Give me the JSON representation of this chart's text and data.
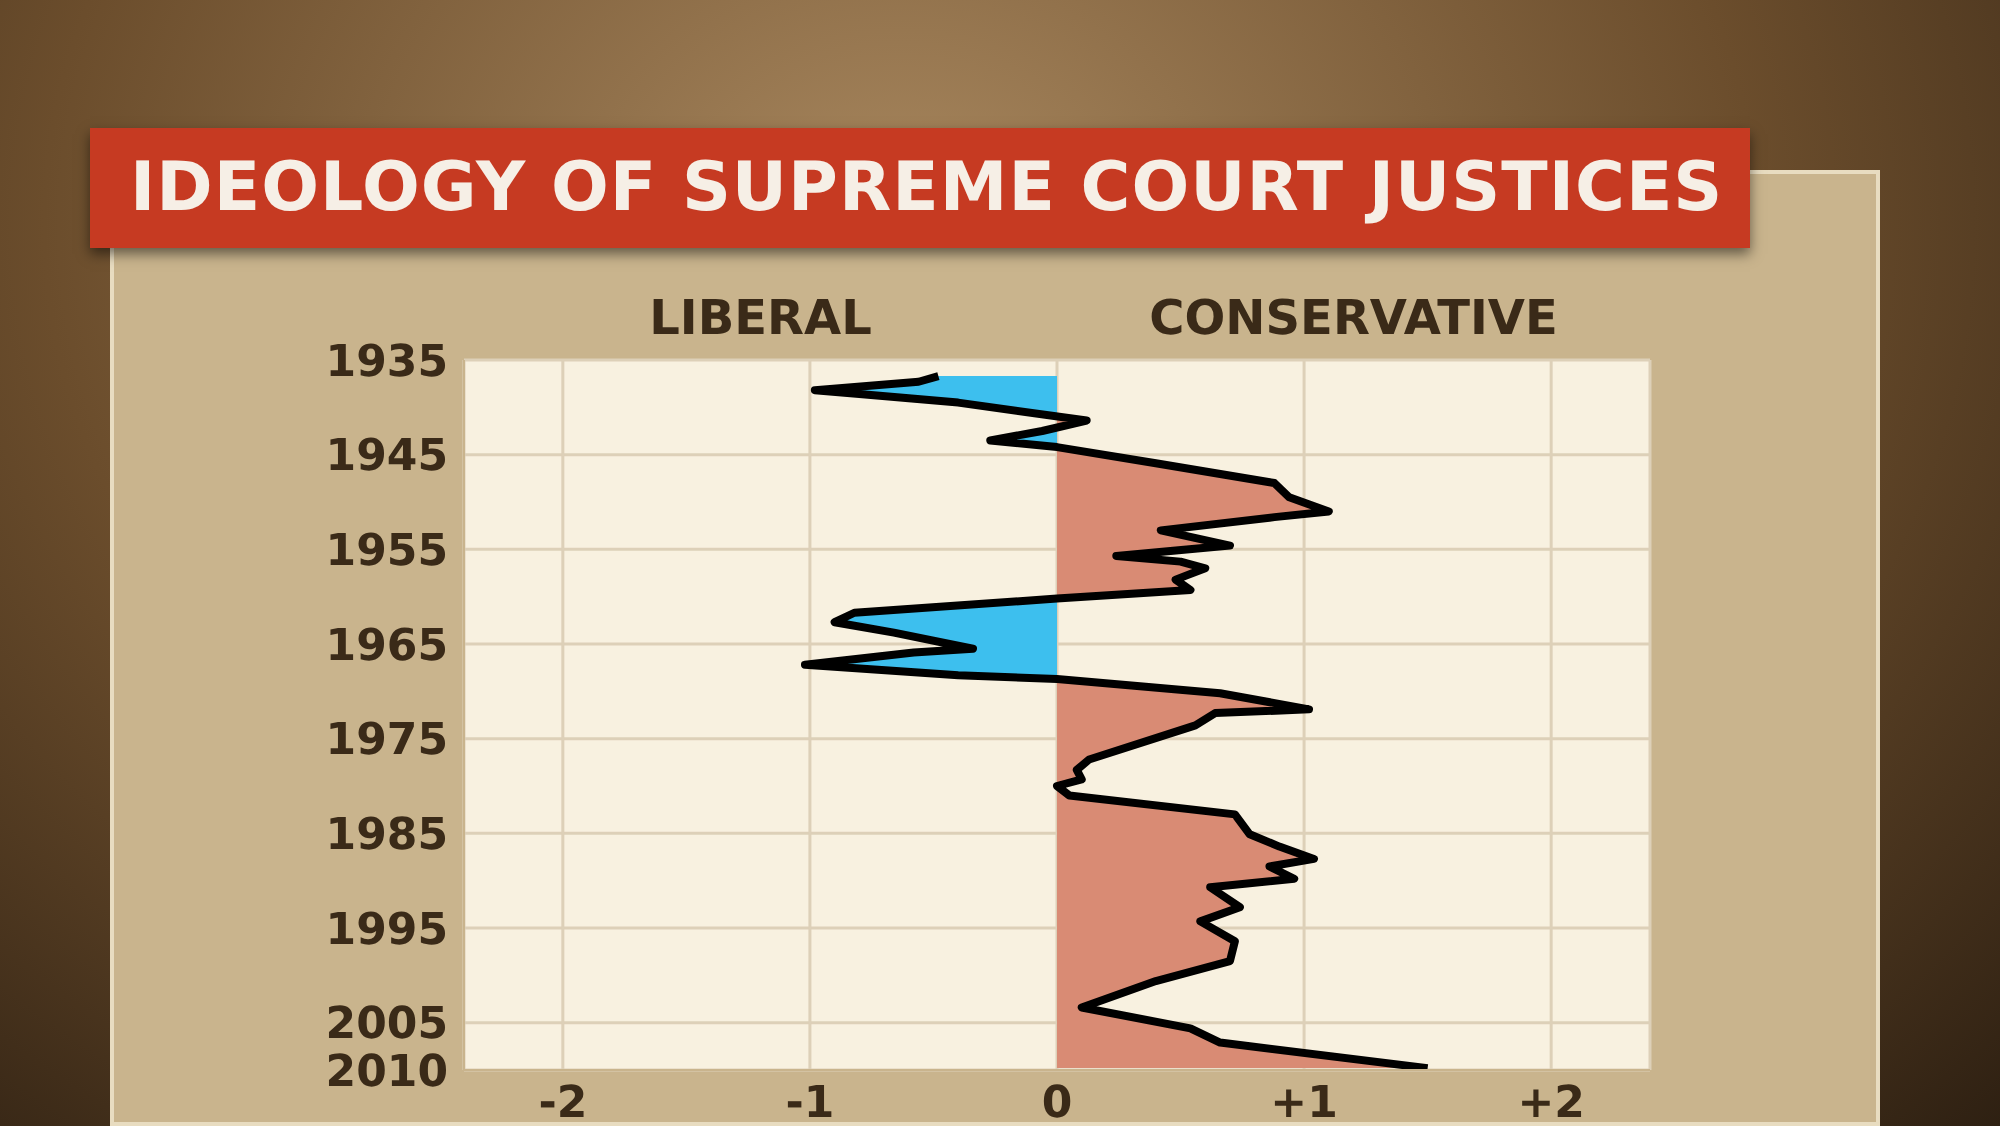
{
  "chart_data": {
    "type": "area",
    "title": "IDEOLOGY OF SUPREME COURT JUSTICES",
    "orientation": "horizontal",
    "annotations": [
      "LIBERAL",
      "CONSERVATIVE"
    ],
    "x": [
      1936.7,
      1937.3,
      1938.2,
      1938.6,
      1939.5,
      1941.4,
      1942.5,
      1943.5,
      1944.2,
      1945.9,
      1948,
      1949.5,
      1951,
      1951.6,
      1953,
      1954.6,
      1955.7,
      1956.3,
      1957,
      1958.2,
      1959.3,
      1960.2,
      1961.7,
      1962.7,
      1963.8,
      1965.5,
      1965.9,
      1967.2,
      1968.3,
      1968.7,
      1970.2,
      1971.9,
      1972.3,
      1973.6,
      1977.2,
      1978.3,
      1979.3,
      1980,
      1981,
      1983,
      1985.1,
      1986.4,
      1987.7,
      1988.5,
      1989.8,
      1990.7,
      1992.8,
      1994.3,
      1996.4,
      1998.5,
      2000.6,
      2003.4,
      2005.6,
      2007.1,
      2009.8
    ],
    "series": [
      {
        "color": "#000000",
        "values": [
          -0.48,
          -0.56,
          -0.98,
          -0.8,
          -0.4,
          0.12,
          -0.06,
          -0.27,
          0,
          0.4,
          0.88,
          0.94,
          1.1,
          0.88,
          0.42,
          0.7,
          0.24,
          0.5,
          0.6,
          0.48,
          0.54,
          0,
          -0.82,
          -0.9,
          -0.66,
          -0.34,
          -0.58,
          -1.02,
          -0.4,
          0,
          0.66,
          1.02,
          0.64,
          0.56,
          0.13,
          0.08,
          0.1,
          0,
          0.05,
          0.72,
          0.78,
          0.9,
          1.04,
          0.86,
          0.96,
          0.62,
          0.74,
          0.58,
          0.72,
          0.7,
          0.4,
          0.1,
          0.54,
          0.66,
          1.5
        ]
      }
    ],
    "colors": [
      "#3dbfee",
      "#d98b74"
    ],
    "xlim": [
      -2.4,
      2.4
    ],
    "xticks": [
      {
        "value": -2,
        "label": "-2"
      },
      {
        "value": -1,
        "label": "-1"
      },
      0,
      {
        "value": 1,
        "label": "+1"
      },
      {
        "value": 2,
        "label": "+2"
      }
    ],
    "ylim": [
      2010,
      1935
    ],
    "yticks": [
      1935,
      1945,
      1955,
      1965,
      1975,
      1985,
      1995,
      2005,
      2010
    ],
    "grid": true,
    "legend": false
  }
}
